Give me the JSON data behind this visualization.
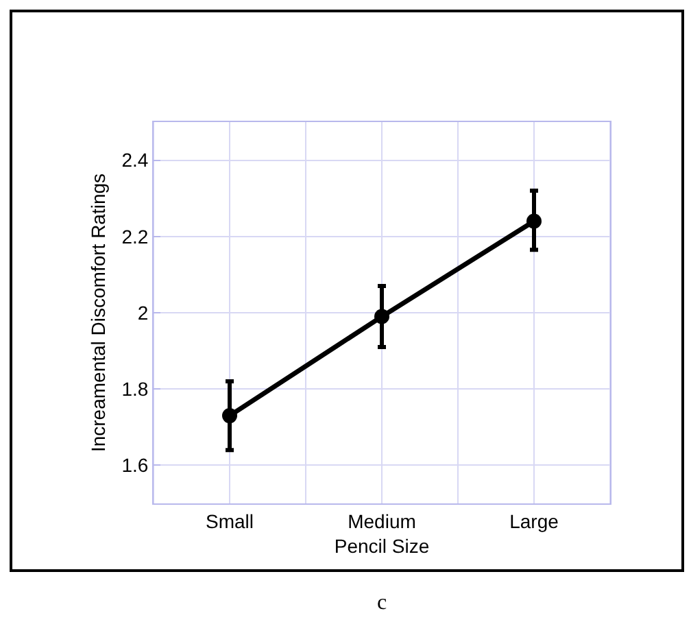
{
  "chart_data": {
    "type": "line",
    "xlabel": "Pencil Size",
    "ylabel": "Increamental Discomfort Ratings",
    "categories": [
      "Small",
      "Medium",
      "Large"
    ],
    "series": [
      {
        "color": "#000000",
        "values": [
          1.73,
          1.99,
          2.24
        ],
        "errors": [
          [
            1.64,
            1.82
          ],
          [
            1.91,
            2.07
          ],
          [
            2.165,
            2.32
          ]
        ]
      }
    ],
    "ylim": [
      1.5,
      2.5
    ],
    "yticks": [
      1.6,
      1.8,
      2,
      2.2,
      2.4
    ],
    "grid": true,
    "marker": "circle",
    "line_style": "solid",
    "annotations": [
      "c"
    ]
  }
}
